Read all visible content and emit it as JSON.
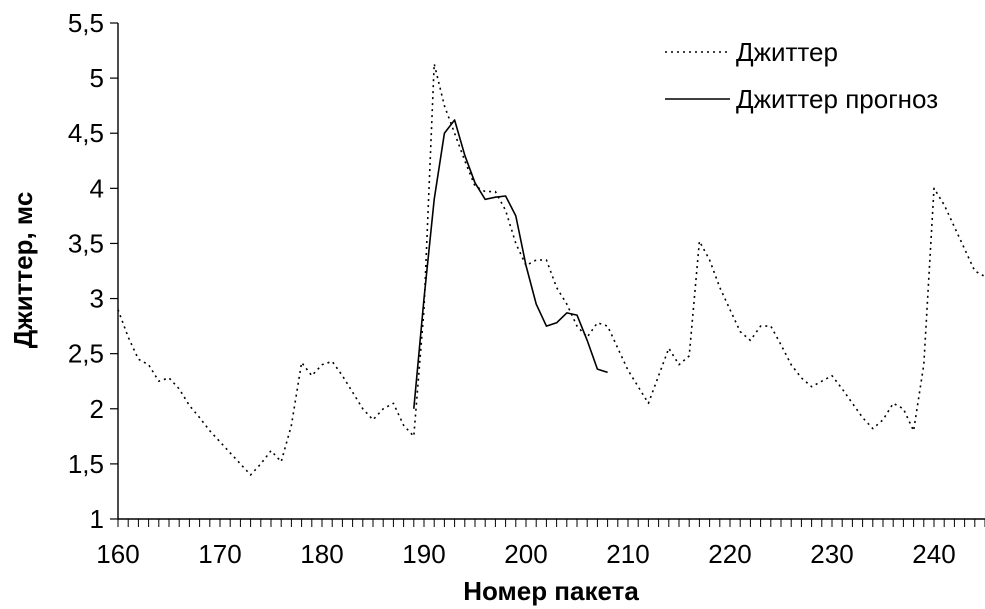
{
  "chart_data": {
    "type": "line",
    "title": "",
    "xlabel": "Номер пакета",
    "ylabel": "Джиттер, мс",
    "xlim": [
      160,
      245
    ],
    "ylim": [
      1,
      5.5
    ],
    "x_ticks": [
      160,
      170,
      180,
      190,
      200,
      210,
      220,
      230,
      240
    ],
    "x_tick_labels": [
      "160",
      "170",
      "180",
      "190",
      "200",
      "210",
      "220",
      "230",
      "240"
    ],
    "y_ticks": [
      1,
      1.5,
      2,
      2.5,
      3,
      3.5,
      4,
      4.5,
      5,
      5.5
    ],
    "y_tick_labels": [
      "1",
      "1,5",
      "2",
      "2,5",
      "3",
      "3,5",
      "4",
      "4,5",
      "5",
      "5,5"
    ],
    "grid": false,
    "legend_position": "top-right",
    "series": [
      {
        "name": "Джиттер",
        "style": "dotted",
        "color": "#000000",
        "x": [
          160,
          161,
          162,
          163,
          164,
          165,
          166,
          167,
          168,
          169,
          170,
          171,
          172,
          173,
          174,
          175,
          176,
          177,
          178,
          179,
          180,
          181,
          182,
          183,
          184,
          185,
          186,
          187,
          188,
          189,
          190,
          191,
          192,
          193,
          194,
          195,
          196,
          197,
          198,
          199,
          200,
          201,
          202,
          203,
          204,
          205,
          206,
          207,
          208,
          209,
          210,
          211,
          212,
          213,
          214,
          215,
          216,
          217,
          218,
          219,
          220,
          221,
          222,
          223,
          224,
          225,
          226,
          227,
          228,
          229,
          230,
          231,
          232,
          233,
          234,
          235,
          236,
          237,
          238,
          239,
          240,
          241,
          242,
          243,
          244,
          245
        ],
        "y": [
          2.9,
          2.65,
          2.45,
          2.4,
          2.25,
          2.28,
          2.18,
          2.03,
          1.92,
          1.8,
          1.7,
          1.6,
          1.5,
          1.4,
          1.5,
          1.62,
          1.52,
          1.85,
          2.42,
          2.3,
          2.4,
          2.43,
          2.3,
          2.15,
          2.0,
          1.9,
          2.0,
          2.05,
          1.85,
          1.75,
          2.9,
          5.13,
          4.75,
          4.5,
          4.25,
          4.02,
          3.97,
          3.97,
          3.8,
          3.5,
          3.3,
          3.35,
          3.35,
          3.1,
          2.95,
          2.75,
          2.65,
          2.78,
          2.75,
          2.55,
          2.35,
          2.2,
          2.05,
          2.3,
          2.55,
          2.4,
          2.48,
          3.52,
          3.35,
          3.1,
          2.9,
          2.7,
          2.62,
          2.75,
          2.75,
          2.58,
          2.4,
          2.28,
          2.2,
          2.25,
          2.3,
          2.18,
          2.05,
          1.92,
          1.82,
          1.9,
          2.05,
          2.0,
          1.8,
          2.4,
          4.0,
          3.85,
          3.65,
          3.45,
          3.25,
          3.2
        ]
      },
      {
        "name": "Джиттер прогноз",
        "style": "solid",
        "color": "#000000",
        "x": [
          189,
          190,
          191,
          192,
          193,
          194,
          195,
          196,
          197,
          198,
          199,
          200,
          201,
          202,
          203,
          204,
          205,
          206,
          207,
          208
        ],
        "y": [
          2.0,
          3.0,
          3.9,
          4.5,
          4.62,
          4.3,
          4.05,
          3.9,
          3.92,
          3.93,
          3.75,
          3.3,
          2.95,
          2.75,
          2.78,
          2.87,
          2.85,
          2.62,
          2.36,
          2.33
        ]
      }
    ]
  }
}
